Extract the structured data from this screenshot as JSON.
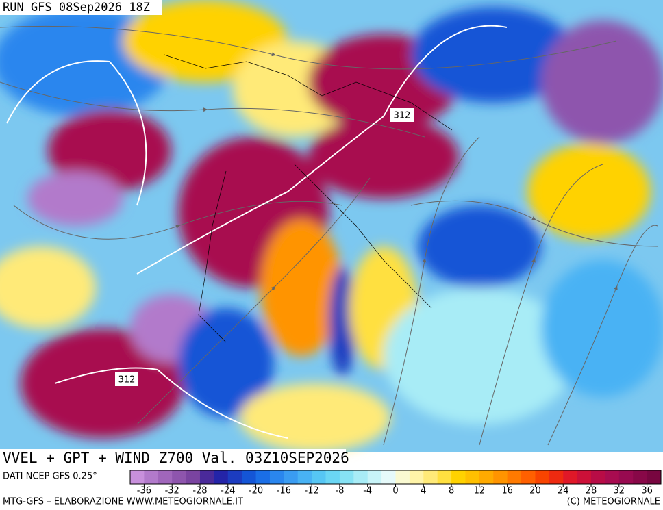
{
  "header": {
    "run": "RUN GFS 08Sep2026 18Z"
  },
  "map": {
    "contour_labels": [
      "312",
      "312"
    ]
  },
  "footer": {
    "title": "VVEL + GPT + WIND Z700 Val. 03Z10SEP2026",
    "source": "DATI NCEP GFS 0.25°",
    "credit_left": "MTG-GFS – ELABORAZIONE WWW.METEOGIORNALE.IT",
    "credit_right": "(C) METEOGIORNALE"
  },
  "colorbar": {
    "lim": [
      -38,
      38
    ],
    "ticks": [
      -36,
      -32,
      -28,
      -24,
      -20,
      -16,
      -12,
      -8,
      -4,
      0,
      4,
      8,
      12,
      16,
      20,
      24,
      28,
      32,
      36
    ],
    "colors": [
      "#c890dc",
      "#b27acb",
      "#a066bb",
      "#8e55ad",
      "#7a44a0",
      "#4a2a9a",
      "#2424a8",
      "#1c3cc0",
      "#1455d6",
      "#1a6ee6",
      "#2a86ee",
      "#3a9cf2",
      "#48b2f4",
      "#56c6f4",
      "#6ad6f4",
      "#86e2f4",
      "#a8ecf6",
      "#c8f4f8",
      "#e6fafa",
      "#fafad2",
      "#fff4a8",
      "#ffea78",
      "#ffe040",
      "#ffd200",
      "#ffc000",
      "#ffaa00",
      "#ff9400",
      "#ff7a00",
      "#ff6000",
      "#f84400",
      "#ee2a10",
      "#e01828",
      "#cc1038",
      "#b80c46",
      "#a80c50",
      "#980a50",
      "#880848",
      "#780640"
    ]
  }
}
